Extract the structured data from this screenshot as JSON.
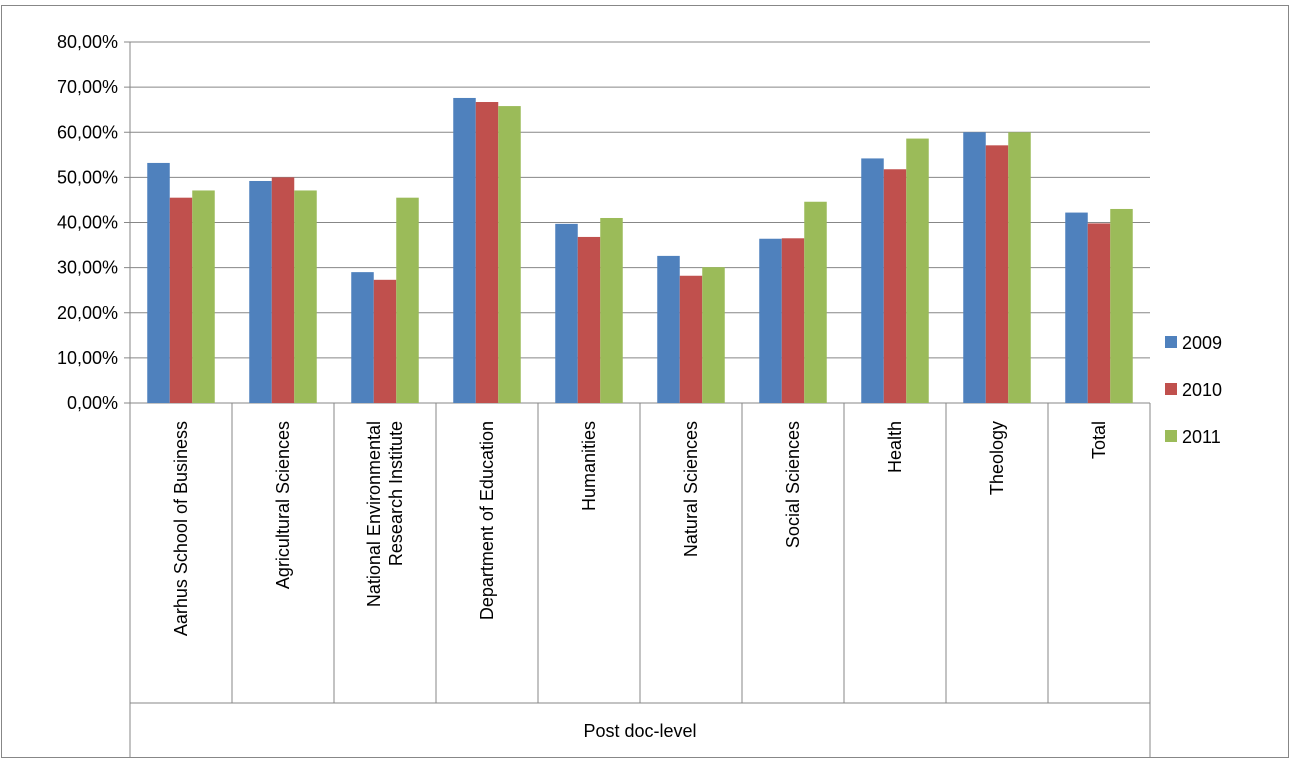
{
  "chart_data": {
    "type": "bar",
    "group_label": "Post doc-level",
    "categories": [
      [
        "Aarhus School of Business"
      ],
      [
        "Agricultural Sciences"
      ],
      [
        "National Environmental",
        "Research Institute"
      ],
      [
        "Department of Education"
      ],
      [
        "Humanities"
      ],
      [
        "Natural Sciences"
      ],
      [
        "Social Sciences"
      ],
      [
        "Health"
      ],
      [
        "Theology"
      ],
      [
        "Total"
      ]
    ],
    "series": [
      {
        "name": "2009",
        "color": "#4f81bd",
        "values": [
          53.2,
          49.2,
          29.0,
          67.6,
          39.7,
          32.6,
          36.4,
          54.2,
          60.0,
          42.2
        ]
      },
      {
        "name": "2010",
        "color": "#c0504d",
        "values": [
          45.5,
          50.0,
          27.3,
          66.7,
          36.8,
          28.2,
          36.5,
          51.8,
          57.1,
          39.8
        ]
      },
      {
        "name": "2011",
        "color": "#9bbb59",
        "values": [
          47.1,
          47.1,
          45.5,
          65.8,
          41.0,
          30.1,
          44.6,
          58.6,
          60.0,
          43.0
        ]
      }
    ],
    "y_ticks": [
      "0,00%",
      "10,00%",
      "20,00%",
      "30,00%",
      "40,00%",
      "50,00%",
      "60,00%",
      "70,00%",
      "80,00%"
    ],
    "ylim": [
      0,
      80
    ],
    "grid": true,
    "legend_position": "right"
  }
}
